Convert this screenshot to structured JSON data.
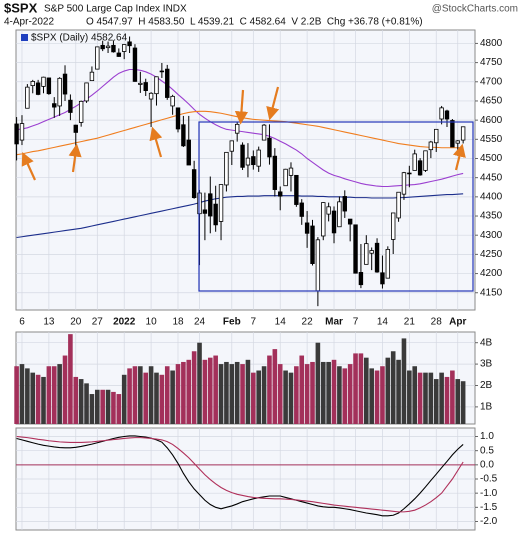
{
  "header": {
    "symbol": "$SPX",
    "name": "S&P 500 Large Cap Index INDX",
    "credit": "@StockCharts.com",
    "date": "4-Apr-2022",
    "quote": "O 4547.97  H 4583.50  L 4539.21  C 4582.64  V 2.2B  Chg +36.78 (+0.81%)"
  },
  "chart_data": [
    {
      "type": "candlestick",
      "legend_label": "$SPX (Daily) 4582.64",
      "legend_color": "#1f3fbf",
      "categories": [
        null,
        "6",
        null,
        null,
        null,
        null,
        "13",
        null,
        null,
        null,
        null,
        "20",
        null,
        null,
        null,
        "27",
        null,
        null,
        null,
        null,
        "2022",
        null,
        null,
        null,
        null,
        "10",
        null,
        null,
        null,
        null,
        "18",
        null,
        null,
        null,
        "24",
        null,
        null,
        null,
        null,
        null,
        "Feb",
        null,
        null,
        null,
        "7",
        null,
        null,
        null,
        null,
        "14",
        null,
        null,
        null,
        null,
        "22",
        null,
        null,
        null,
        null,
        "Mar",
        null,
        null,
        null,
        "7",
        null,
        null,
        null,
        null,
        "14",
        null,
        null,
        null,
        null,
        "21",
        null,
        null,
        null,
        null,
        "28",
        null,
        null,
        null,
        "Apr",
        null
      ],
      "open": [
        4590,
        4548,
        4631,
        4690,
        4697,
        4688,
        4710,
        4643,
        4637,
        4720,
        4652,
        4587,
        4594,
        4650,
        4703,
        4733,
        4795,
        4789,
        4795,
        4775,
        4779,
        4804,
        4788,
        4693,
        4698,
        4655,
        4669,
        4728,
        4733,
        4637,
        4632,
        4588,
        4548,
        4471,
        4356,
        4366,
        4408,
        4381,
        4336,
        4431,
        4519,
        4566,
        4535,
        4483,
        4505,
        4480,
        4548,
        4553,
        4506,
        4413,
        4429,
        4456,
        4456,
        4384,
        4332,
        4324,
        4155,
        4298,
        4355,
        4363,
        4322,
        4401,
        4342,
        4327,
        4203,
        4224,
        4253,
        4279,
        4202,
        4188,
        4289,
        4345,
        4407,
        4462,
        4469,
        4494,
        4469,
        4523,
        4541,
        4603,
        4624,
        4599,
        4540,
        4547.97
      ],
      "high": [
        4608,
        4613,
        4694,
        4705,
        4705,
        4713,
        4711,
        4660,
        4712,
        4743,
        4667,
        4588,
        4651,
        4698,
        4740,
        4791,
        4807,
        4805,
        4808,
        4787,
        4797,
        4818,
        4798,
        4726,
        4708,
        4673,
        4714,
        4749,
        4744,
        4666,
        4632,
        4611,
        4611,
        4494,
        4418,
        4411,
        4453,
        4429,
        4432,
        4516,
        4546,
        4596,
        4542,
        4540,
        4521,
        4531,
        4590,
        4589,
        4527,
        4427,
        4473,
        4490,
        4456,
        4394,
        4363,
        4340,
        4295,
        4386,
        4385,
        4375,
        4401,
        4417,
        4342,
        4327,
        4277,
        4300,
        4268,
        4292,
        4247,
        4271,
        4358,
        4412,
        4465,
        4481,
        4523,
        4501,
        4520,
        4546,
        4575,
        4637,
        4627,
        4603,
        4548,
        4583.5
      ],
      "low": [
        4495,
        4535,
        4631,
        4670,
        4665,
        4670,
        4666,
        4606,
        4611,
        4650,
        4600,
        4531,
        4583,
        4645,
        4703,
        4733,
        4780,
        4775,
        4776,
        4765,
        4759,
        4775,
        4700,
        4671,
        4663,
        4582,
        4638,
        4710,
        4653,
        4614,
        4568,
        4530,
        4483,
        4395,
        4222,
        4287,
        4305,
        4309,
        4287,
        4414,
        4483,
        4544,
        4470,
        4451,
        4471,
        4465,
        4548,
        4484,
        4401,
        4365,
        4429,
        4414,
        4374,
        4327,
        4267,
        4221,
        4115,
        4287,
        4336,
        4279,
        4322,
        4345,
        4284,
        4200,
        4162,
        4224,
        4209,
        4202,
        4161,
        4187,
        4251,
        4335,
        4392,
        4425,
        4469,
        4455,
        4465,
        4501,
        4517,
        4589,
        4582,
        4530,
        4507,
        4539.21
      ],
      "close": [
        4538,
        4591,
        4686,
        4701,
        4667,
        4712,
        4669,
        4634,
        4709,
        4668,
        4620,
        4568,
        4649,
        4697,
        4725,
        4791,
        4786,
        4793,
        4778,
        4766,
        4797,
        4794,
        4701,
        4696,
        4677,
        4670,
        4713,
        4726,
        4659,
        4662,
        4577,
        4533,
        4483,
        4398,
        4410,
        4357,
        4350,
        4327,
        4432,
        4516,
        4546,
        4589,
        4477,
        4501,
        4484,
        4522,
        4587,
        4504,
        4419,
        4402,
        4472,
        4475,
        4380,
        4349,
        4305,
        4226,
        4288,
        4385,
        4374,
        4306,
        4387,
        4363,
        4329,
        4201,
        4171,
        4278,
        4260,
        4204,
        4173,
        4263,
        4358,
        4412,
        4463,
        4462,
        4512,
        4457,
        4520,
        4543,
        4576,
        4632,
        4603,
        4530,
        4546,
        4582.64
      ],
      "up_fill": "#ffffff",
      "down_fill": "#000000",
      "wick_color": "#000000",
      "series": [
        {
          "color": "#9b3fd0",
          "values": [
            4575,
            4577,
            4580,
            4585,
            4590,
            4596,
            4602,
            4608,
            4614,
            4620,
            4628,
            4636,
            4645,
            4655,
            4665,
            4676,
            4688,
            4700,
            4712,
            4722,
            4728,
            4732,
            4732,
            4730,
            4726,
            4720,
            4712,
            4702,
            4692,
            4680,
            4667,
            4655,
            4642,
            4628,
            4615,
            4605,
            4596,
            4588,
            4581,
            4576,
            4574,
            4572,
            4570,
            4568,
            4566,
            4564,
            4562,
            4558,
            4552,
            4545,
            4538,
            4530,
            4522,
            4512,
            4500,
            4490,
            4480,
            4470,
            4462,
            4456,
            4452,
            4447,
            4443,
            4439,
            4435,
            4432,
            4430,
            4428,
            4427,
            4427,
            4428,
            4429,
            4430,
            4431,
            4432,
            4434,
            4437,
            4440,
            4443,
            4446,
            4450,
            4454,
            4458,
            4461
          ]
        },
        {
          "color": "#f07d1e",
          "values": [
            4510,
            4512,
            4515,
            4518,
            4520,
            4523,
            4526,
            4529,
            4532,
            4535,
            4538,
            4541,
            4544,
            4547,
            4550,
            4553,
            4557,
            4561,
            4565,
            4569,
            4573,
            4577,
            4581,
            4585,
            4589,
            4593,
            4597,
            4601,
            4605,
            4609,
            4613,
            4617,
            4620,
            4622,
            4623,
            4623,
            4622,
            4620,
            4618,
            4615,
            4612,
            4609,
            4606,
            4604,
            4602,
            4601,
            4600,
            4599,
            4598,
            4597,
            4596,
            4594,
            4592,
            4590,
            4588,
            4586,
            4584,
            4581,
            4578,
            4575,
            4572,
            4569,
            4566,
            4563,
            4560,
            4557,
            4554,
            4551,
            4548,
            4545,
            4542,
            4539,
            4537,
            4535,
            4533,
            4531,
            4530,
            4529,
            4529,
            4528,
            4528,
            4528,
            4528,
            4529
          ]
        },
        {
          "color": "#1c2e8c",
          "values": [
            4294,
            4296,
            4298,
            4300,
            4302,
            4304,
            4306,
            4308,
            4310,
            4312,
            4314,
            4316,
            4318,
            4321,
            4324,
            4327,
            4330,
            4333,
            4336,
            4339,
            4342,
            4345,
            4348,
            4351,
            4354,
            4357,
            4360,
            4363,
            4366,
            4369,
            4372,
            4375,
            4378,
            4381,
            4385,
            4389,
            4392,
            4395,
            4397,
            4399,
            4400,
            4401,
            4401,
            4402,
            4402,
            4402,
            4403,
            4403,
            4403,
            4403,
            4403,
            4403,
            4403,
            4402,
            4402,
            4402,
            4401,
            4401,
            4400,
            4400,
            4400,
            4399,
            4399,
            4398,
            4398,
            4398,
            4397,
            4397,
            4397,
            4397,
            4397,
            4398,
            4398,
            4399,
            4400,
            4401,
            4402,
            4403,
            4404,
            4405,
            4406,
            4406,
            4407,
            4408
          ]
        }
      ],
      "ylim": [
        4105,
        4835
      ],
      "yticks": [
        4150,
        4200,
        4250,
        4300,
        4350,
        4400,
        4450,
        4500,
        4550,
        4600,
        4650,
        4700,
        4750,
        4800
      ],
      "grid": true
    },
    {
      "type": "bar",
      "up_color": "#3a3a3a",
      "down_color": "#a3305a",
      "values": [
        2.9,
        3.0,
        2.8,
        2.6,
        2.5,
        2.4,
        2.9,
        2.9,
        3.0,
        3.4,
        4.4,
        2.4,
        2.3,
        2.1,
        1.6,
        1.8,
        1.8,
        1.8,
        1.7,
        1.6,
        2.5,
        2.8,
        2.9,
        2.9,
        2.6,
        2.9,
        2.6,
        2.5,
        2.9,
        2.7,
        3.0,
        3.1,
        3.2,
        3.6,
        4.0,
        3.2,
        3.3,
        3.4,
        3.0,
        3.1,
        3.0,
        3.1,
        3.0,
        3.2,
        2.6,
        2.7,
        2.9,
        3.4,
        3.7,
        3.0,
        2.7,
        2.6,
        2.9,
        3.4,
        3.0,
        3.1,
        4.0,
        3.1,
        3.1,
        3.2,
        2.9,
        2.8,
        3.0,
        3.5,
        3.5,
        3.3,
        2.8,
        2.7,
        2.9,
        3.3,
        3.6,
        3.2,
        4.2,
        2.7,
        2.9,
        2.6,
        2.6,
        2.6,
        2.3,
        2.6,
        2.4,
        2.7,
        2.3,
        2.2
      ],
      "ylim": [
        0.2,
        4.5
      ],
      "yticks": [
        {
          "value": 1,
          "label": "1B"
        },
        {
          "value": 2,
          "label": "2B"
        },
        {
          "value": 3,
          "label": "3B"
        },
        {
          "value": 4,
          "label": "4B"
        }
      ],
      "grid": true
    },
    {
      "type": "line",
      "hline": 0,
      "hline_color": "#a3305a",
      "series": [
        {
          "color": "#000000",
          "values": [
            0.93,
            0.88,
            0.83,
            0.78,
            0.73,
            0.69,
            0.66,
            0.63,
            0.61,
            0.6,
            0.6,
            0.62,
            0.65,
            0.69,
            0.73,
            0.78,
            0.83,
            0.88,
            0.93,
            0.97,
            1.0,
            1.02,
            1.02,
            1.0,
            0.98,
            0.94,
            0.88,
            0.8,
            0.6,
            0.35,
            0.05,
            -0.3,
            -0.6,
            -0.85,
            -1.05,
            -1.25,
            -1.4,
            -1.5,
            -1.55,
            -1.5,
            -1.45,
            -1.38,
            -1.3,
            -1.25,
            -1.2,
            -1.16,
            -1.13,
            -1.1,
            -1.1,
            -1.1,
            -1.15,
            -1.2,
            -1.25,
            -1.3,
            -1.35,
            -1.4,
            -1.45,
            -1.48,
            -1.5,
            -1.5,
            -1.52,
            -1.55,
            -1.58,
            -1.62,
            -1.66,
            -1.7,
            -1.73,
            -1.76,
            -1.8,
            -1.8,
            -1.78,
            -1.7,
            -1.55,
            -1.38,
            -1.2,
            -1.0,
            -0.78,
            -0.55,
            -0.33,
            -0.1,
            0.12,
            0.35,
            0.55,
            0.72
          ]
        },
        {
          "color": "#b0305a",
          "values": [
            1.0,
            0.98,
            0.96,
            0.93,
            0.9,
            0.88,
            0.85,
            0.83,
            0.81,
            0.8,
            0.79,
            0.79,
            0.79,
            0.8,
            0.81,
            0.83,
            0.85,
            0.87,
            0.89,
            0.91,
            0.93,
            0.95,
            0.96,
            0.96,
            0.95,
            0.93,
            0.91,
            0.88,
            0.82,
            0.72,
            0.58,
            0.42,
            0.25,
            0.05,
            -0.15,
            -0.35,
            -0.52,
            -0.67,
            -0.8,
            -0.9,
            -0.98,
            -1.04,
            -1.08,
            -1.12,
            -1.15,
            -1.17,
            -1.18,
            -1.19,
            -1.2,
            -1.2,
            -1.21,
            -1.22,
            -1.24,
            -1.26,
            -1.28,
            -1.3,
            -1.33,
            -1.36,
            -1.39,
            -1.42,
            -1.44,
            -1.46,
            -1.48,
            -1.5,
            -1.52,
            -1.54,
            -1.56,
            -1.58,
            -1.6,
            -1.62,
            -1.64,
            -1.66,
            -1.66,
            -1.64,
            -1.6,
            -1.52,
            -1.42,
            -1.3,
            -1.16,
            -1.0,
            -0.75,
            -0.5,
            -0.2,
            0.1
          ]
        }
      ],
      "ylim": [
        -2.3,
        1.3
      ],
      "yticks": [
        {
          "value": 1,
          "label": "1.0"
        },
        0.5,
        {
          "value": 0,
          "label": "0.0"
        },
        -0.5,
        {
          "value": -1,
          "label": "-1.0"
        },
        -1.5,
        {
          "value": -2,
          "label": "-2.0"
        }
      ],
      "grid": true
    }
  ]
}
